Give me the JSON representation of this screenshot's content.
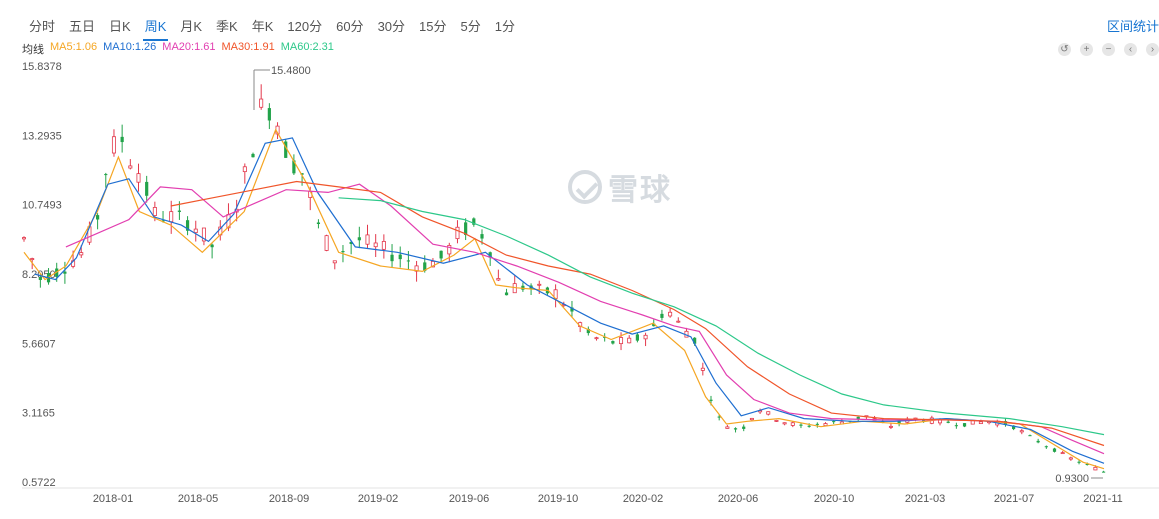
{
  "tabs": [
    {
      "label": "分时"
    },
    {
      "label": "五日"
    },
    {
      "label": "日K"
    },
    {
      "label": "周K",
      "active": true
    },
    {
      "label": "月K"
    },
    {
      "label": "季K"
    },
    {
      "label": "年K"
    },
    {
      "label": "120分"
    },
    {
      "label": "60分"
    },
    {
      "label": "30分"
    },
    {
      "label": "15分"
    },
    {
      "label": "5分"
    },
    {
      "label": "1分"
    }
  ],
  "range_link": "区间统计",
  "legend": {
    "title": "均线",
    "items": [
      {
        "label": "MA5:1.06",
        "color": "#f5a623"
      },
      {
        "label": "MA10:1.26",
        "color": "#1f6fd1"
      },
      {
        "label": "MA20:1.61",
        "color": "#e23fb0"
      },
      {
        "label": "MA30:1.91",
        "color": "#f0552a"
      },
      {
        "label": "MA60:2.31",
        "color": "#2dc88a"
      }
    ]
  },
  "controls": [
    {
      "name": "reset-icon",
      "glyph": "↺"
    },
    {
      "name": "zoom-in-icon",
      "glyph": "+"
    },
    {
      "name": "zoom-out-icon",
      "glyph": "−"
    },
    {
      "name": "prev-icon",
      "glyph": "‹"
    },
    {
      "name": "next-icon",
      "glyph": "›"
    }
  ],
  "watermark": "雪球",
  "colors": {
    "up": "#e3374b",
    "down": "#22a34a"
  },
  "chart_data": {
    "type": "candlestick",
    "yticks": [
      "15.8378",
      "13.2935",
      "10.7493",
      "8.2050",
      "5.6607",
      "3.1165",
      "0.5722"
    ],
    "ylim": [
      0.5722,
      15.8378
    ],
    "xticks": [
      "2018-01",
      "2018-05",
      "2018-09",
      "2019-02",
      "2019-06",
      "2019-10",
      "2020-02",
      "2020-06",
      "2020-10",
      "2021-03",
      "2021-07",
      "2021-11"
    ],
    "annotations": {
      "max_label": "15.4800",
      "min_label": "0.9300"
    },
    "ma_series": {
      "MA5": [
        [
          0,
          9.0
        ],
        [
          10,
          8.0
        ],
        [
          20,
          8.5
        ],
        [
          35,
          10.5
        ],
        [
          45,
          12.5
        ],
        [
          55,
          10.5
        ],
        [
          70,
          10.0
        ],
        [
          85,
          9.0
        ],
        [
          105,
          10.5
        ],
        [
          120,
          13.5
        ],
        [
          135,
          11.5
        ],
        [
          150,
          9.0
        ],
        [
          170,
          8.5
        ],
        [
          190,
          8.3
        ],
        [
          205,
          8.9
        ],
        [
          215,
          9.5
        ],
        [
          225,
          7.8
        ],
        [
          235,
          7.7
        ],
        [
          250,
          7.6
        ],
        [
          265,
          6.3
        ],
        [
          280,
          5.8
        ],
        [
          300,
          6.4
        ],
        [
          315,
          5.4
        ],
        [
          325,
          3.7
        ],
        [
          335,
          2.7
        ],
        [
          345,
          2.8
        ],
        [
          360,
          2.9
        ],
        [
          380,
          2.6
        ],
        [
          400,
          2.8
        ],
        [
          420,
          2.7
        ],
        [
          440,
          2.9
        ],
        [
          460,
          2.8
        ],
        [
          475,
          2.7
        ],
        [
          490,
          2.0
        ],
        [
          505,
          1.3
        ],
        [
          515,
          1.06
        ]
      ],
      "MA10": [
        [
          5,
          8.2
        ],
        [
          15,
          8.0
        ],
        [
          25,
          8.8
        ],
        [
          40,
          11.5
        ],
        [
          50,
          11.7
        ],
        [
          62,
          10.3
        ],
        [
          75,
          10.0
        ],
        [
          88,
          9.4
        ],
        [
          100,
          10.4
        ],
        [
          115,
          13.0
        ],
        [
          128,
          13.2
        ],
        [
          140,
          11.2
        ],
        [
          158,
          9.2
        ],
        [
          178,
          9.0
        ],
        [
          200,
          8.6
        ],
        [
          220,
          9.0
        ],
        [
          240,
          7.8
        ],
        [
          260,
          7.0
        ],
        [
          275,
          6.4
        ],
        [
          290,
          6.0
        ],
        [
          305,
          6.3
        ],
        [
          318,
          5.9
        ],
        [
          330,
          4.2
        ],
        [
          342,
          3.0
        ],
        [
          355,
          3.3
        ],
        [
          372,
          2.9
        ],
        [
          395,
          2.8
        ],
        [
          415,
          2.8
        ],
        [
          440,
          2.9
        ],
        [
          460,
          2.8
        ],
        [
          480,
          2.5
        ],
        [
          500,
          1.7
        ],
        [
          515,
          1.26
        ]
      ],
      "MA20": [
        [
          20,
          9.2
        ],
        [
          35,
          9.7
        ],
        [
          50,
          10.2
        ],
        [
          65,
          11.4
        ],
        [
          80,
          11.3
        ],
        [
          95,
          10.3
        ],
        [
          110,
          10.8
        ],
        [
          125,
          11.3
        ],
        [
          145,
          11.2
        ],
        [
          160,
          11.5
        ],
        [
          175,
          10.7
        ],
        [
          195,
          9.3
        ],
        [
          215,
          9.0
        ],
        [
          235,
          8.5
        ],
        [
          255,
          7.9
        ],
        [
          275,
          7.2
        ],
        [
          295,
          6.7
        ],
        [
          310,
          6.3
        ],
        [
          322,
          6.1
        ],
        [
          335,
          4.5
        ],
        [
          348,
          3.6
        ],
        [
          365,
          3.1
        ],
        [
          385,
          2.9
        ],
        [
          410,
          2.85
        ],
        [
          440,
          2.85
        ],
        [
          465,
          2.8
        ],
        [
          485,
          2.6
        ],
        [
          500,
          2.1
        ],
        [
          515,
          1.61
        ]
      ],
      "MA30": [
        [
          70,
          10.7
        ],
        [
          90,
          11.0
        ],
        [
          110,
          11.3
        ],
        [
          130,
          11.6
        ],
        [
          150,
          11.4
        ],
        [
          170,
          11.2
        ],
        [
          190,
          10.3
        ],
        [
          210,
          9.7
        ],
        [
          230,
          8.9
        ],
        [
          250,
          8.5
        ],
        [
          270,
          8.2
        ],
        [
          290,
          7.6
        ],
        [
          310,
          6.9
        ],
        [
          325,
          6.2
        ],
        [
          345,
          4.8
        ],
        [
          365,
          3.8
        ],
        [
          385,
          3.1
        ],
        [
          410,
          2.9
        ],
        [
          440,
          2.85
        ],
        [
          465,
          2.8
        ],
        [
          490,
          2.55
        ],
        [
          515,
          1.91
        ]
      ],
      "MA60": [
        [
          150,
          11.0
        ],
        [
          170,
          10.9
        ],
        [
          190,
          10.5
        ],
        [
          210,
          10.2
        ],
        [
          230,
          9.6
        ],
        [
          250,
          8.9
        ],
        [
          270,
          8.1
        ],
        [
          290,
          7.5
        ],
        [
          310,
          7.0
        ],
        [
          330,
          6.3
        ],
        [
          350,
          5.3
        ],
        [
          370,
          4.5
        ],
        [
          390,
          3.8
        ],
        [
          410,
          3.4
        ],
        [
          440,
          3.1
        ],
        [
          470,
          2.9
        ],
        [
          495,
          2.6
        ],
        [
          515,
          2.31
        ]
      ]
    },
    "price_path": [
      [
        0,
        9.5
      ],
      [
        8,
        8.0
      ],
      [
        18,
        8.4
      ],
      [
        28,
        9.0
      ],
      [
        36,
        10.5
      ],
      [
        40,
        12.5
      ],
      [
        46,
        13.3
      ],
      [
        50,
        12.5
      ],
      [
        56,
        11.8
      ],
      [
        62,
        10.4
      ],
      [
        70,
        10.3
      ],
      [
        80,
        10.1
      ],
      [
        90,
        9.2
      ],
      [
        100,
        10.5
      ],
      [
        108,
        12.5
      ],
      [
        114,
        14.6
      ],
      [
        120,
        14.0
      ],
      [
        126,
        12.5
      ],
      [
        134,
        11.8
      ],
      [
        140,
        10.0
      ],
      [
        148,
        8.8
      ],
      [
        158,
        9.5
      ],
      [
        168,
        9.2
      ],
      [
        180,
        8.8
      ],
      [
        190,
        8.5
      ],
      [
        200,
        8.8
      ],
      [
        208,
        9.8
      ],
      [
        216,
        10.0
      ],
      [
        222,
        9.2
      ],
      [
        228,
        7.5
      ],
      [
        236,
        7.8
      ],
      [
        244,
        7.6
      ],
      [
        254,
        7.5
      ],
      [
        262,
        6.7
      ],
      [
        270,
        5.9
      ],
      [
        280,
        5.7
      ],
      [
        290,
        5.7
      ],
      [
        300,
        6.2
      ],
      [
        306,
        7.0
      ],
      [
        312,
        6.4
      ],
      [
        320,
        5.8
      ],
      [
        326,
        4.0
      ],
      [
        332,
        2.8
      ],
      [
        338,
        2.5
      ],
      [
        344,
        2.6
      ],
      [
        350,
        3.3
      ],
      [
        356,
        3.0
      ],
      [
        362,
        2.8
      ],
      [
        370,
        2.6
      ],
      [
        380,
        2.7
      ],
      [
        392,
        2.8
      ],
      [
        402,
        3.0
      ],
      [
        412,
        2.6
      ],
      [
        424,
        2.9
      ],
      [
        436,
        2.8
      ],
      [
        448,
        2.7
      ],
      [
        460,
        2.8
      ],
      [
        470,
        2.7
      ],
      [
        480,
        2.2
      ],
      [
        490,
        1.8
      ],
      [
        500,
        1.4
      ],
      [
        510,
        1.1
      ],
      [
        515,
        0.95
      ]
    ]
  }
}
